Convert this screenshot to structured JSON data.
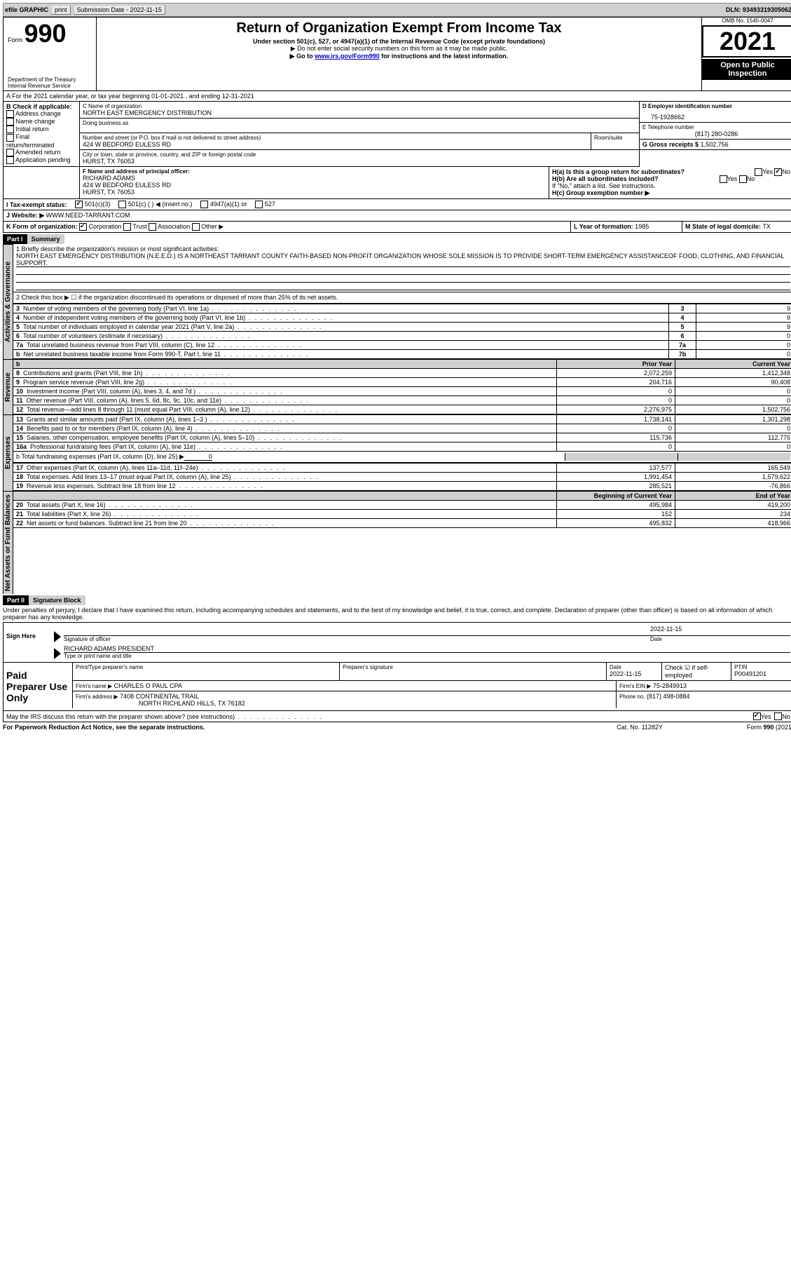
{
  "toolbar": {
    "efile_label": "efile GRAPHIC",
    "print_label": "print",
    "submission_label": "Submission Date - 2022-11-15",
    "dln_label": "DLN: 93493319305062"
  },
  "header": {
    "form_label": "Form",
    "form_number": "990",
    "dept": "Department of the Treasury",
    "irs": "Internal Revenue Service",
    "title": "Return of Organization Exempt From Income Tax",
    "subtitle": "Under section 501(c), 527, or 4947(a)(1) of the Internal Revenue Code (except private foundations)",
    "note1": "▶ Do not enter social security numbers on this form as it may be made public.",
    "note2_pre": "▶ Go to ",
    "note2_link": "www.irs.gov/Form990",
    "note2_post": " for instructions and the latest information.",
    "omb": "OMB No. 1545-0047",
    "year": "2021",
    "open_public": "Open to Public Inspection"
  },
  "period": {
    "line": "A For the 2021 calendar year, or tax year beginning 01-01-2021   , and ending 12-31-2021"
  },
  "boxB": {
    "label": "B Check if applicable:",
    "items": [
      "Address change",
      "Name change",
      "Initial return",
      "Final return/terminated",
      "Amended return",
      "Application pending"
    ]
  },
  "boxC": {
    "name_label": "C Name of organization",
    "name": "NORTH EAST EMERGENCY DISTRIBUTION",
    "dba_label": "Doing business as",
    "street_label": "Number and street (or P.O. box if mail is not delivered to street address)",
    "room_label": "Room/suite",
    "street": "424 W BEDFORD EULESS RD",
    "city_label": "City or town, state or province, country, and ZIP or foreign postal code",
    "city": "HURST, TX  76053"
  },
  "boxD": {
    "label": "D Employer identification number",
    "value": "75-1928662"
  },
  "boxE": {
    "label": "E Telephone number",
    "value": "(817) 280-0286"
  },
  "boxG": {
    "label": "G Gross receipts $",
    "value": "1,502,756"
  },
  "boxF": {
    "label": "F Name and address of principal officer:",
    "name": "RICHARD ADAMS",
    "street": "424 W BEDFORD EULESS RD",
    "city": "HURST, TX  76053"
  },
  "boxH": {
    "ha": "H(a)  Is this a group return for subordinates?",
    "hb": "H(b)  Are all subordinates included?",
    "hnote": "If \"No,\" attach a list. See instructions.",
    "hc": "H(c)  Group exemption number ▶",
    "yes": "Yes",
    "no": "No"
  },
  "boxI": {
    "label": "I   Tax-exempt status:",
    "opt1": "501(c)(3)",
    "opt2": "501(c) (   ) ◀ (insert no.)",
    "opt3": "4947(a)(1) or",
    "opt4": "527"
  },
  "boxJ": {
    "label": "J   Website: ▶",
    "value": "WWW.NEED-TARRANT.COM"
  },
  "boxK": {
    "label": "K Form of organization:",
    "opts": [
      "Corporation",
      "Trust",
      "Association",
      "Other ▶"
    ]
  },
  "boxL": {
    "label": "L Year of formation:",
    "value": "1985"
  },
  "boxM": {
    "label": "M State of legal domicile:",
    "value": "TX"
  },
  "part1": {
    "bar": "Part I",
    "title": "Summary",
    "vlabels": [
      "Activities & Governance",
      "Revenue",
      "Expenses",
      "Net Assets or Fund Balances"
    ],
    "l1_label": "1  Briefly describe the organization's mission or most significant activities:",
    "l1_text": "NORTH EAST EMERGENCY DISTRIBUTION (N.E.E.D.) IS A NORTHEAST TARRANT COUNTY FAITH-BASED NON-PROFIT ORGANIZATION WHOSE SOLE MISSION IS TO PROVIDE SHORT-TERM EMERGENCY ASSISTANCEOF FOOD, CLOTHING, AND FINANCIAL SUPPORT.",
    "l2": "2   Check this box ▶ ☐  if the organization discontinued its operations or disposed of more than 25% of its net assets.",
    "rows_gov": [
      {
        "n": "3",
        "label": "Number of voting members of the governing body (Part VI, line 1a)",
        "box": "3",
        "val": "9"
      },
      {
        "n": "4",
        "label": "Number of independent voting members of the governing body (Part VI, line 1b)",
        "box": "4",
        "val": "9"
      },
      {
        "n": "5",
        "label": "Total number of individuals employed in calendar year 2021 (Part V, line 2a)",
        "box": "5",
        "val": "9"
      },
      {
        "n": "6",
        "label": "Total number of volunteers (estimate if necessary)",
        "box": "6",
        "val": "0"
      },
      {
        "n": "7a",
        "label": "Total unrelated business revenue from Part VIII, column (C), line 12",
        "box": "7a",
        "val": "0"
      },
      {
        "n": "b",
        "label": "Net unrelated business taxable income from Form 990-T, Part I, line 11",
        "box": "7b",
        "val": "0"
      }
    ],
    "col_prior": "Prior Year",
    "col_current": "Current Year",
    "rows_rev": [
      {
        "n": "8",
        "label": "Contributions and grants (Part VIII, line 1h)",
        "p": "2,072,259",
        "c": "1,412,348"
      },
      {
        "n": "9",
        "label": "Program service revenue (Part VIII, line 2g)",
        "p": "204,716",
        "c": "90,408"
      },
      {
        "n": "10",
        "label": "Investment income (Part VIII, column (A), lines 3, 4, and 7d )",
        "p": "0",
        "c": "0"
      },
      {
        "n": "11",
        "label": "Other revenue (Part VIII, column (A), lines 5, 6d, 8c, 9c, 10c, and 11e)",
        "p": "0",
        "c": "0"
      },
      {
        "n": "12",
        "label": "Total revenue—add lines 8 through 11 (must equal Part VIII, column (A), line 12)",
        "p": "2,276,975",
        "c": "1,502,756"
      }
    ],
    "rows_exp": [
      {
        "n": "13",
        "label": "Grants and similar amounts paid (Part IX, column (A), lines 1–3 )",
        "p": "1,738,141",
        "c": "1,301,298"
      },
      {
        "n": "14",
        "label": "Benefits paid to or for members (Part IX, column (A), line 4)",
        "p": "0",
        "c": "0"
      },
      {
        "n": "15",
        "label": "Salaries, other compensation, employee benefits (Part IX, column (A), lines 5–10)",
        "p": "115,736",
        "c": "112,775"
      },
      {
        "n": "16a",
        "label": "Professional fundraising fees (Part IX, column (A), line 11e)",
        "p": "0",
        "c": "0"
      }
    ],
    "l16b_label": "b  Total fundraising expenses (Part IX, column (D), line 25) ▶",
    "l16b_val": "0",
    "rows_exp2": [
      {
        "n": "17",
        "label": "Other expenses (Part IX, column (A), lines 11a–11d, 11f–24e)",
        "p": "137,577",
        "c": "165,549"
      },
      {
        "n": "18",
        "label": "Total expenses. Add lines 13–17 (must equal Part IX, column (A), line 25)",
        "p": "1,991,454",
        "c": "1,579,622"
      },
      {
        "n": "19",
        "label": "Revenue less expenses. Subtract line 18 from line 12",
        "p": "285,521",
        "c": "-76,866"
      }
    ],
    "col_begin": "Beginning of Current Year",
    "col_end": "End of Year",
    "rows_net": [
      {
        "n": "20",
        "label": "Total assets (Part X, line 16)",
        "p": "495,984",
        "c": "419,200"
      },
      {
        "n": "21",
        "label": "Total liabilities (Part X, line 26)",
        "p": "152",
        "c": "234"
      },
      {
        "n": "22",
        "label": "Net assets or fund balances. Subtract line 21 from line 20",
        "p": "495,832",
        "c": "418,966"
      }
    ]
  },
  "part2": {
    "bar": "Part II",
    "title": "Signature Block",
    "declaration": "Under penalties of perjury, I declare that I have examined this return, including accompanying schedules and statements, and to the best of my knowledge and belief, it is true, correct, and complete. Declaration of preparer (other than officer) is based on all information of which preparer has any knowledge.",
    "sign_here": "Sign Here",
    "sig_officer": "Signature of officer",
    "sig_date": "2022-11-15",
    "date_label": "Date",
    "officer_name": "RICHARD ADAMS  PRESIDENT",
    "type_name": "Type or print name and title",
    "paid_label": "Paid Preparer Use Only",
    "prep_name_label": "Print/Type preparer's name",
    "prep_sig_label": "Preparer's signature",
    "prep_date_label": "Date",
    "prep_date": "2022-11-15",
    "check_self": "Check ☑ if self-employed",
    "ptin_label": "PTIN",
    "ptin": "P00491201",
    "firm_name_label": "Firm's name    ▶",
    "firm_name": "CHARLES O PAUL CPA",
    "firm_ein_label": "Firm's EIN ▶",
    "firm_ein": "75-2849913",
    "firm_addr_label": "Firm's address ▶",
    "firm_addr1": "7408 CONTINENTAL TRAIL",
    "firm_addr2": "NORTH RICHLAND HILLS, TX  76182",
    "phone_label": "Phone no.",
    "phone": "(817) 498-0884",
    "discuss": "May the IRS discuss this return with the preparer shown above? (see instructions)",
    "yes": "Yes",
    "no": "No"
  },
  "footer": {
    "pra": "For Paperwork Reduction Act Notice, see the separate instructions.",
    "cat": "Cat. No. 11282Y",
    "form": "Form 990 (2021)"
  },
  "colors": {
    "black": "#000000",
    "gray": "#d0d0d0",
    "link": "#0000cc"
  }
}
